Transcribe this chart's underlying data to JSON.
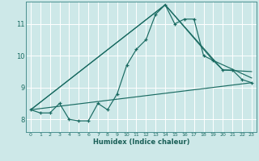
{
  "xlabel": "Humidex (Indice chaleur)",
  "bg_color": "#cde8e8",
  "grid_color": "#b0d8d8",
  "line_color": "#1a6b62",
  "xlim": [
    -0.5,
    23.5
  ],
  "ylim": [
    7.6,
    11.7
  ],
  "xticks": [
    0,
    1,
    2,
    3,
    4,
    5,
    6,
    7,
    8,
    9,
    10,
    11,
    12,
    13,
    14,
    15,
    16,
    17,
    18,
    19,
    20,
    21,
    22,
    23
  ],
  "yticks": [
    8,
    9,
    10,
    11
  ],
  "series1_x": [
    0,
    1,
    2,
    3,
    4,
    5,
    6,
    7,
    8,
    9,
    10,
    11,
    12,
    13,
    14,
    15,
    16,
    17,
    18,
    19,
    20,
    21,
    22,
    23
  ],
  "series1_y": [
    8.3,
    8.2,
    8.2,
    8.5,
    8.0,
    7.95,
    7.95,
    8.5,
    8.3,
    8.8,
    9.7,
    10.2,
    10.5,
    11.3,
    11.6,
    11.0,
    11.15,
    11.15,
    10.0,
    9.85,
    9.55,
    9.55,
    9.25,
    9.15
  ],
  "series2_x": [
    0,
    14,
    19,
    23
  ],
  "series2_y": [
    8.3,
    11.6,
    9.85,
    9.3
  ],
  "series3_x": [
    0,
    14,
    20,
    23
  ],
  "series3_y": [
    8.3,
    11.6,
    9.55,
    9.5
  ],
  "series4_x": [
    0,
    23
  ],
  "series4_y": [
    8.3,
    9.15
  ]
}
